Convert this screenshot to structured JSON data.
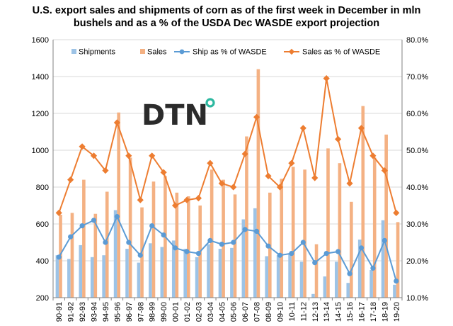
{
  "chart_data": {
    "type": "bar",
    "title_lines": [
      "U.S. export sales and shipments of corn as of the first week in December in mln",
      "bushels and as a % of the USDA Dec WASDE  export projection"
    ],
    "xlabel": "",
    "ylabel": "",
    "ylim": [
      200,
      1600
    ],
    "y2lim": [
      10,
      80
    ],
    "y_ticks": [
      "200",
      "400",
      "600",
      "800",
      "1000",
      "1200",
      "1400",
      "1600"
    ],
    "y2_ticks": [
      "10.0%",
      "20.0%",
      "30.0%",
      "40.0%",
      "50.0%",
      "60.0%",
      "70.0%",
      "80.0%"
    ],
    "grid": true,
    "legend_position": "top",
    "categories": [
      "90-91",
      "91-92",
      "92-93",
      "93-94",
      "94-95",
      "95-96",
      "96-97",
      "97-98",
      "98-99",
      "99-00",
      "00-01",
      "01-02",
      "02-03",
      "03-04",
      "04-05",
      "05-06",
      "06-07",
      "07-08",
      "08-09",
      "09-10",
      "10-11",
      "11-12",
      "12-13",
      "13-14",
      "14-15",
      "15-16",
      "16-17",
      "17-18",
      "18-19",
      "19-20"
    ],
    "series": [
      {
        "name": "Shipments",
        "kind": "bar",
        "axis": "left",
        "color": "#9dc3e6",
        "values": [
          430,
          410,
          485,
          420,
          430,
          675,
          465,
          390,
          495,
          475,
          510,
          465,
          420,
          490,
          465,
          470,
          625,
          685,
          425,
          430,
          440,
          395,
          220,
          315,
          395,
          280,
          515,
          350,
          620,
          270
        ]
      },
      {
        "name": "Sales",
        "kind": "bar",
        "axis": "left",
        "color": "#f4b183",
        "values": [
          650,
          660,
          840,
          655,
          775,
          1205,
          960,
          690,
          830,
          860,
          770,
          750,
          700,
          895,
          840,
          760,
          1075,
          1440,
          770,
          845,
          910,
          895,
          490,
          1010,
          930,
          720,
          1240,
          960,
          1085,
          610
        ]
      },
      {
        "name": "Ship as % of WASDE",
        "kind": "line",
        "axis": "right",
        "color": "#5b9bd5",
        "values": [
          21.0,
          26.5,
          29.5,
          31.0,
          25.0,
          32.0,
          25.0,
          21.5,
          29.5,
          27.0,
          23.5,
          22.5,
          22.0,
          25.5,
          24.5,
          25.0,
          28.5,
          28.0,
          24.0,
          21.5,
          22.0,
          25.0,
          19.5,
          22.0,
          22.5,
          16.5,
          23.5,
          18.0,
          25.5,
          14.5
        ]
      },
      {
        "name": "Sales as % of WASDE",
        "kind": "line",
        "axis": "right",
        "color": "#ed7d31",
        "values": [
          33.0,
          42.0,
          51.0,
          48.5,
          44.5,
          57.5,
          48.5,
          36.5,
          48.5,
          44.0,
          35.0,
          36.5,
          37.0,
          46.5,
          41.0,
          40.0,
          49.0,
          59.0,
          43.0,
          40.0,
          46.5,
          56.0,
          42.5,
          69.5,
          53.0,
          41.0,
          56.0,
          48.5,
          44.5,
          33.0
        ]
      }
    ]
  },
  "logo": {
    "text": "DTN",
    "dot_color": "#2db8a0"
  }
}
